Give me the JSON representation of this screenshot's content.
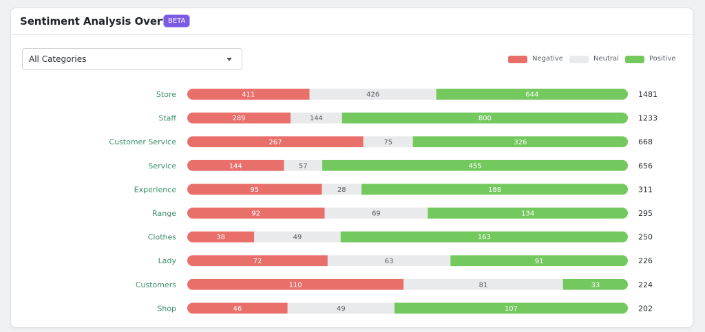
{
  "header": {
    "title": "Sentiment Analysis Overview",
    "badge": "BETA"
  },
  "filter": {
    "selected": "All Categories"
  },
  "legend": [
    {
      "label": "Negative",
      "color": "#e86f6a"
    },
    {
      "label": "Neutral",
      "color": "#e9eaec"
    },
    {
      "label": "Positive",
      "color": "#73c95e"
    }
  ],
  "chart_data": {
    "type": "bar",
    "orientation": "horizontal",
    "stacked": true,
    "normalized": true,
    "categories": [
      "Store",
      "Staff",
      "Customer Service",
      "Service",
      "Experience",
      "Range",
      "Clothes",
      "Lady",
      "Customers",
      "Shop"
    ],
    "series": [
      {
        "name": "Negative",
        "color": "#e86f6a",
        "values": [
          411,
          289,
          267,
          144,
          95,
          92,
          38,
          72,
          110,
          46
        ]
      },
      {
        "name": "Neutral",
        "color": "#e9eaec",
        "values": [
          426,
          144,
          75,
          57,
          28,
          69,
          49,
          63,
          81,
          49
        ]
      },
      {
        "name": "Positive",
        "color": "#73c95e",
        "values": [
          644,
          800,
          326,
          455,
          188,
          134,
          163,
          91,
          33,
          107
        ]
      }
    ],
    "totals": [
      1481,
      1233,
      668,
      656,
      311,
      295,
      250,
      226,
      224,
      202
    ],
    "legend_position": "top-right",
    "grid": false
  }
}
